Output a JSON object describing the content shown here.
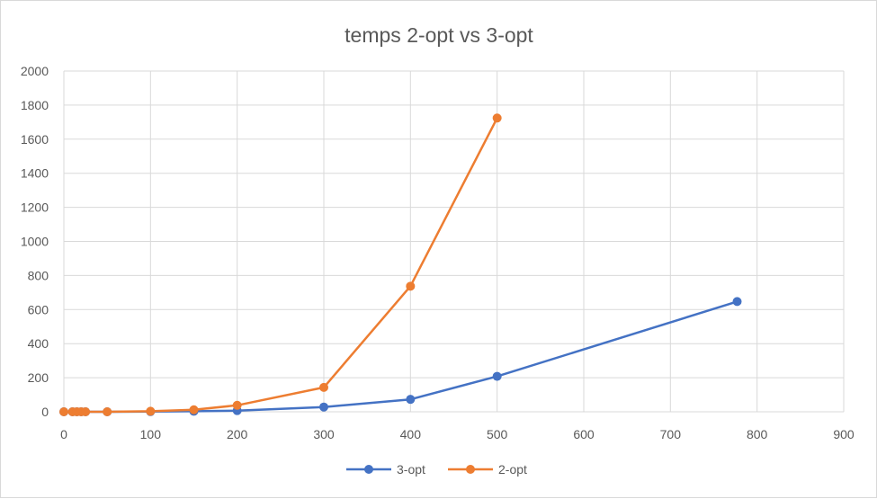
{
  "chart_data": {
    "type": "scatter",
    "title": "temps 2-opt vs 3-opt",
    "xlabel": "",
    "ylabel": "",
    "xlim": [
      0,
      900
    ],
    "ylim": [
      0,
      2000
    ],
    "x_ticks": [
      0,
      100,
      200,
      300,
      400,
      500,
      600,
      700,
      800,
      900
    ],
    "y_ticks": [
      0,
      200,
      400,
      600,
      800,
      1000,
      1200,
      1400,
      1600,
      1800,
      2000
    ],
    "grid": true,
    "legend_position": "bottom",
    "series": [
      {
        "name": "3-opt",
        "color": "#4472C4",
        "x": [
          0,
          10,
          15,
          20,
          25,
          50,
          100,
          150,
          200,
          300,
          400,
          500,
          777
        ],
        "y": [
          0,
          0,
          0,
          0,
          0,
          0,
          1,
          3,
          7,
          28,
          73,
          208,
          647
        ]
      },
      {
        "name": "2-opt",
        "color": "#ED7D31",
        "x": [
          0,
          10,
          15,
          20,
          25,
          50,
          100,
          150,
          200,
          300,
          400,
          500
        ],
        "y": [
          0,
          0,
          0,
          0,
          0,
          0,
          3,
          12,
          38,
          143,
          737,
          1724
        ]
      }
    ]
  }
}
